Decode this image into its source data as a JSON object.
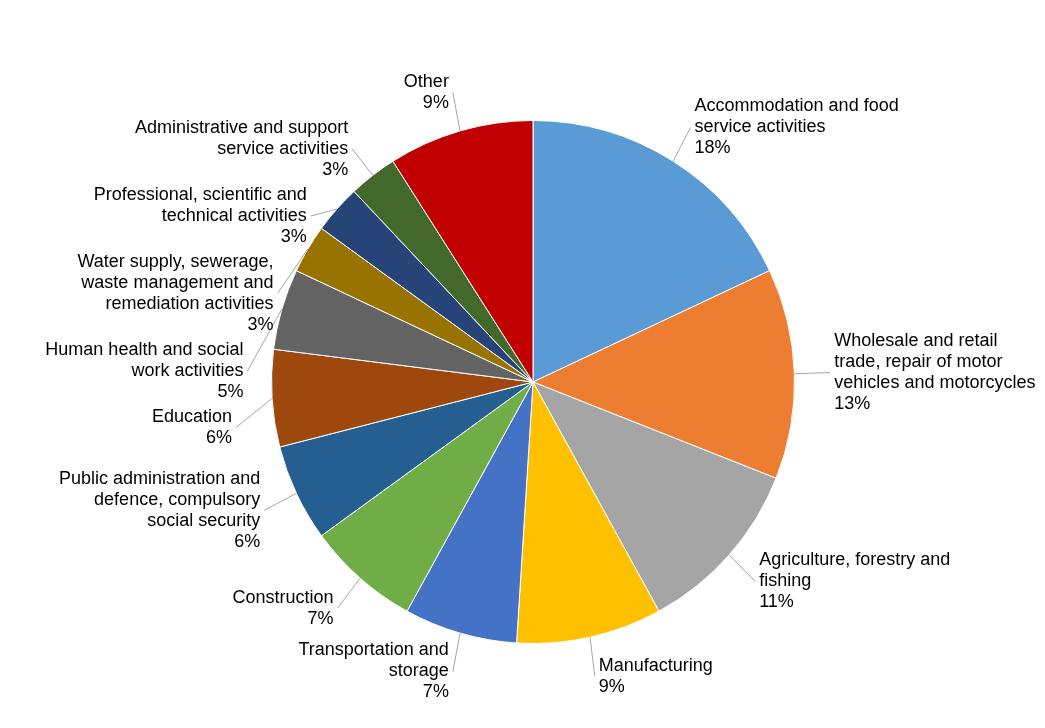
{
  "chart_data": {
    "type": "pie",
    "categories": [
      "Accommodation and food service activities",
      "Wholesale and retail trade, repair of motor vehicles and motorcycles",
      "Agriculture, forestry and fishing",
      "Manufacturing",
      "Transportation and storage",
      "Construction",
      "Public administration and defence, compulsory social security",
      "Education",
      "Human health and social work activities",
      "Water supply, sewerage, waste management and remediation activities",
      "Professional, scientific and technical activities",
      "Administrative and support service activities",
      "Other"
    ],
    "values": [
      18,
      13,
      11,
      9,
      7,
      7,
      6,
      6,
      5,
      3,
      3,
      3,
      9
    ],
    "value_labels": [
      "18%",
      "13%",
      "11%",
      "9%",
      "7%",
      "7%",
      "6%",
      "6%",
      "5%",
      "3%",
      "3%",
      "3%",
      "9%"
    ],
    "colors": [
      "#5b9bd5",
      "#ed7d31",
      "#a5a5a5",
      "#ffc000",
      "#4472c4",
      "#70ad47",
      "#255e91",
      "#9e480e",
      "#636363",
      "#997300",
      "#264478",
      "#43682b",
      "#c00000"
    ],
    "legend": false
  }
}
